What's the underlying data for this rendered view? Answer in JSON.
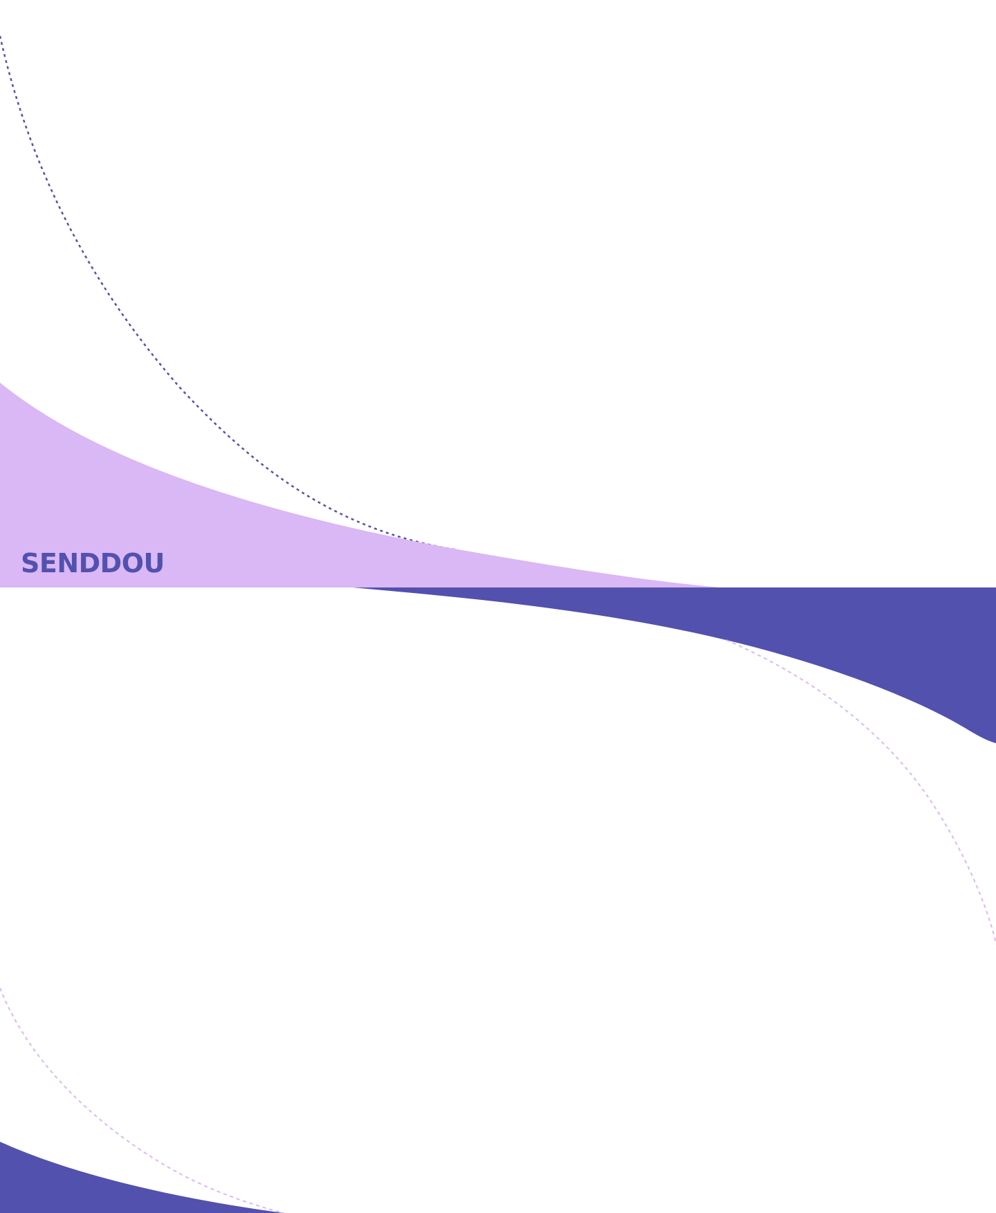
{
  "brand": {
    "name": "SENDDOU"
  },
  "colors": {
    "primary": "#5251AE",
    "accent": "#DAB7F5",
    "background": "#FFFFFF"
  }
}
